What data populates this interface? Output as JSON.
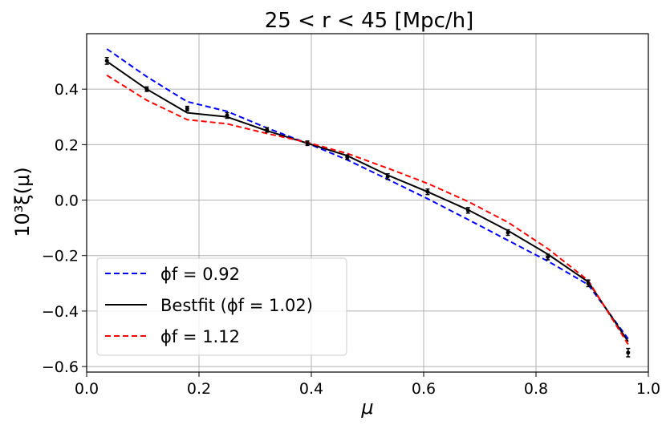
{
  "chart_data": {
    "type": "line",
    "title": "25 < r < 45 [Mpc/h]",
    "xlabel": "μ",
    "ylabel": "10³ξ(μ)",
    "xlim": [
      0.0,
      1.0
    ],
    "ylim": [
      -0.62,
      0.6
    ],
    "xticks": [
      0.0,
      0.2,
      0.4,
      0.6,
      0.8,
      1.0
    ],
    "xtick_labels": [
      "0.0",
      "0.2",
      "0.4",
      "0.6",
      "0.8",
      "1.0"
    ],
    "yticks": [
      -0.6,
      -0.4,
      -0.2,
      0.0,
      0.2,
      0.4
    ],
    "ytick_labels": [
      "−0.6",
      "−0.4",
      "−0.2",
      "0.0",
      "0.2",
      "0.4"
    ],
    "grid": true,
    "legend_position": "lower-left",
    "x": [
      0.036,
      0.107,
      0.179,
      0.25,
      0.321,
      0.393,
      0.464,
      0.536,
      0.607,
      0.679,
      0.75,
      0.821,
      0.893,
      0.964
    ],
    "series": [
      {
        "name": "ϕ_f = 0.92",
        "legend_label": "ϕf = 0.92",
        "color": "#0000ff",
        "style": "dashed",
        "values": [
          0.545,
          0.445,
          0.355,
          0.32,
          0.26,
          0.205,
          0.145,
          0.075,
          0.005,
          -0.07,
          -0.145,
          -0.22,
          -0.305,
          -0.5
        ]
      },
      {
        "name": "Bestfit (ϕ_f = 1.02)",
        "legend_label": "Bestfit (ϕf = 1.02)",
        "color": "#000000",
        "style": "solid",
        "values": [
          0.5,
          0.4,
          0.315,
          0.3,
          0.25,
          0.205,
          0.16,
          0.09,
          0.03,
          -0.035,
          -0.11,
          -0.195,
          -0.295,
          -0.51
        ]
      },
      {
        "name": "ϕ_f = 1.12",
        "legend_label": "ϕf = 1.12",
        "color": "#ff0000",
        "style": "dashed",
        "values": [
          0.45,
          0.36,
          0.29,
          0.275,
          0.24,
          0.208,
          0.168,
          0.115,
          0.06,
          -0.005,
          -0.08,
          -0.175,
          -0.29,
          -0.52
        ]
      }
    ],
    "data_points": {
      "color": "#000000",
      "x": [
        0.036,
        0.107,
        0.179,
        0.25,
        0.321,
        0.393,
        0.464,
        0.536,
        0.607,
        0.679,
        0.75,
        0.821,
        0.893,
        0.964
      ],
      "y": [
        0.502,
        0.4,
        0.33,
        0.305,
        0.253,
        0.205,
        0.155,
        0.085,
        0.03,
        -0.037,
        -0.117,
        -0.205,
        -0.3,
        -0.55
      ],
      "yerr": [
        0.012,
        0.008,
        0.008,
        0.01,
        0.008,
        0.008,
        0.008,
        0.01,
        0.01,
        0.01,
        0.01,
        0.01,
        0.012,
        0.015
      ]
    }
  }
}
